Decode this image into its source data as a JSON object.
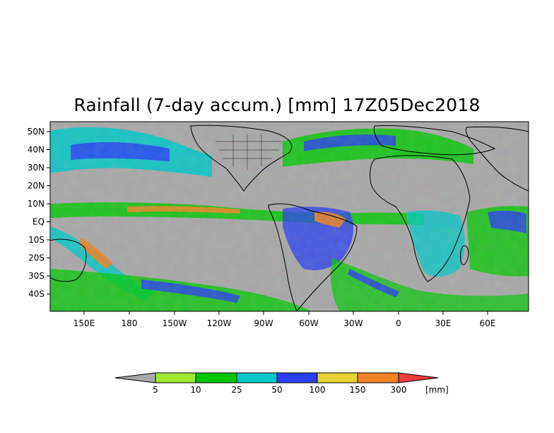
{
  "title": "Rainfall (7-day accum.) [mm] 17Z05Dec2018",
  "map": {
    "lat_labels": [
      "50N",
      "40N",
      "30N",
      "20N",
      "10N",
      "EQ",
      "10S",
      "20S",
      "30S",
      "40S"
    ],
    "lon_labels": [
      "150E",
      "180",
      "150W",
      "120W",
      "90W",
      "60W",
      "30W",
      "0",
      "30E",
      "60E"
    ],
    "background_color": "#a8a8a8"
  },
  "legend": {
    "unit": "[mm]",
    "thresholds": [
      "5",
      "10",
      "25",
      "50",
      "100",
      "150",
      "300"
    ],
    "colors": [
      "#a8a8a8",
      "#a0e632",
      "#00c800",
      "#00c8c8",
      "#2a3ef0",
      "#e6d232",
      "#f08228",
      "#f03c3c"
    ]
  }
}
